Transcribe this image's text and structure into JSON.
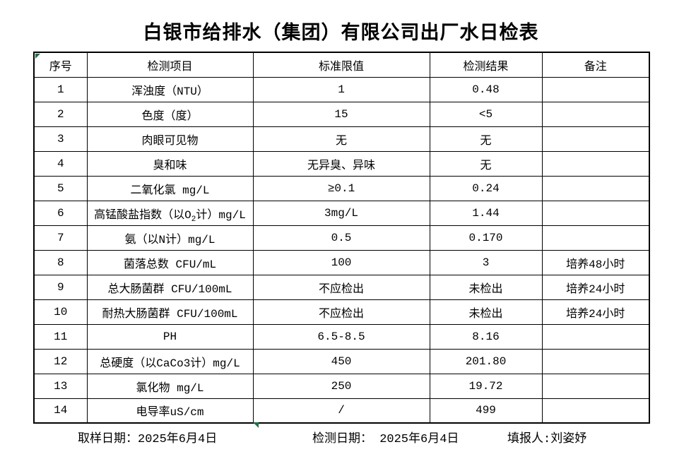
{
  "title": "白银市给排水（集团）有限公司出厂水日检表",
  "accent": {
    "marker_green": "#1e7145",
    "line_black": "#000000"
  },
  "table": {
    "headers": [
      "序号",
      "检测项目",
      "标准限值",
      "检测结果",
      "备注"
    ],
    "rows": [
      {
        "no": "1",
        "item": "浑浊度（NTU）",
        "limit": "1",
        "result": "0.48",
        "note": ""
      },
      {
        "no": "2",
        "item": "色度（度）",
        "limit": "15",
        "result": "<5",
        "note": ""
      },
      {
        "no": "3",
        "item": "肉眼可见物",
        "limit": "无",
        "result": "无",
        "note": ""
      },
      {
        "no": "4",
        "item": "臭和味",
        "limit": "无异臭、异味",
        "result": "无",
        "note": ""
      },
      {
        "no": "5",
        "item": "二氧化氯 mg/L",
        "limit": "≥0.1",
        "result": "0.24",
        "note": ""
      },
      {
        "no": "6",
        "item": [
          {
            "text": "高锰酸盐指数（以O"
          },
          {
            "text": "2",
            "sub": true
          },
          {
            "text": "计）mg/L"
          }
        ],
        "limit": "3mg/L",
        "result": "1.44",
        "note": ""
      },
      {
        "no": "7",
        "item": "氨（以N计）mg/L",
        "limit": "0.5",
        "result": "0.170",
        "note": ""
      },
      {
        "no": "8",
        "item": "菌落总数 CFU/mL",
        "limit": "100",
        "result": "3",
        "note": "培养48小时"
      },
      {
        "no": "9",
        "item": "总大肠菌群 CFU/100mL",
        "limit": "不应检出",
        "result": "未检出",
        "note": "培养24小时"
      },
      {
        "no": "10",
        "item": "耐热大肠菌群 CFU/100mL",
        "limit": "不应检出",
        "result": "未检出",
        "note": "培养24小时"
      },
      {
        "no": "11",
        "item": "PH",
        "limit": "6.5-8.5",
        "result": "8.16",
        "note": ""
      },
      {
        "no": "12",
        "item": "总硬度（以CaCo3计）mg/L",
        "limit": "450",
        "result": "201.80",
        "note": ""
      },
      {
        "no": "13",
        "item": "氯化物 mg/L",
        "limit": "250",
        "result": "19.72",
        "note": ""
      },
      {
        "no": "14",
        "item": "电导率uS/cm",
        "limit": "/",
        "result": "499",
        "note": ""
      }
    ]
  },
  "footer": {
    "sampling_date": "取样日期：2025年6月4日",
    "test_date": "检测日期： 2025年6月4日",
    "reporter": "填报人:刘姿妤"
  }
}
